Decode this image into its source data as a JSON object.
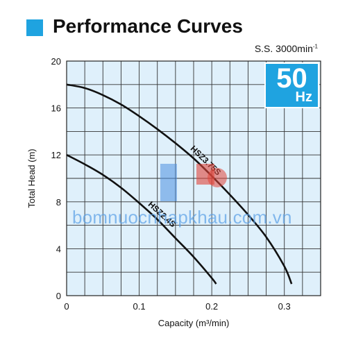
{
  "header": {
    "title": "Performance Curves",
    "speed_prefix": "S.S. 3000min",
    "speed_sup": "-1"
  },
  "badge": {
    "value": "50",
    "unit": "Hz",
    "color": "#1fa3e0"
  },
  "watermark": {
    "text": "bomnuocnhapkhau.com.vn"
  },
  "chart_data": {
    "type": "line",
    "xlabel": "Capacity (m³/min)",
    "ylabel": "Total Head (m)",
    "xlim": [
      0,
      0.35
    ],
    "ylim": [
      0,
      20
    ],
    "x_ticks": [
      "0",
      "0.1",
      "0.2",
      "0.3"
    ],
    "x_tick_values": [
      0,
      0.1,
      0.2,
      0.3
    ],
    "y_ticks": [
      "0",
      "4",
      "8",
      "12",
      "16",
      "20"
    ],
    "y_tick_values": [
      0,
      4,
      8,
      12,
      16,
      20
    ],
    "grid": true,
    "grid_step_x": 0.025,
    "grid_step_y": 2,
    "plot_background": "#dff0fb",
    "series": [
      {
        "name": "HSZ2.4S",
        "color": "#111111",
        "x": [
          0,
          0.025,
          0.05,
          0.075,
          0.1,
          0.125,
          0.15,
          0.175,
          0.2,
          0.206
        ],
        "y": [
          12,
          11.2,
          10.3,
          9.2,
          7.9,
          6.5,
          4.9,
          3.3,
          1.5,
          1.0
        ]
      },
      {
        "name": "HSZ3.75S",
        "color": "#111111",
        "x": [
          0,
          0.025,
          0.05,
          0.075,
          0.1,
          0.125,
          0.15,
          0.175,
          0.2,
          0.225,
          0.25,
          0.275,
          0.3,
          0.31
        ],
        "y": [
          18,
          17.7,
          17.1,
          16.3,
          15.3,
          14.2,
          13.0,
          11.7,
          10.2,
          8.6,
          6.9,
          5.0,
          2.5,
          1.0
        ]
      }
    ]
  }
}
